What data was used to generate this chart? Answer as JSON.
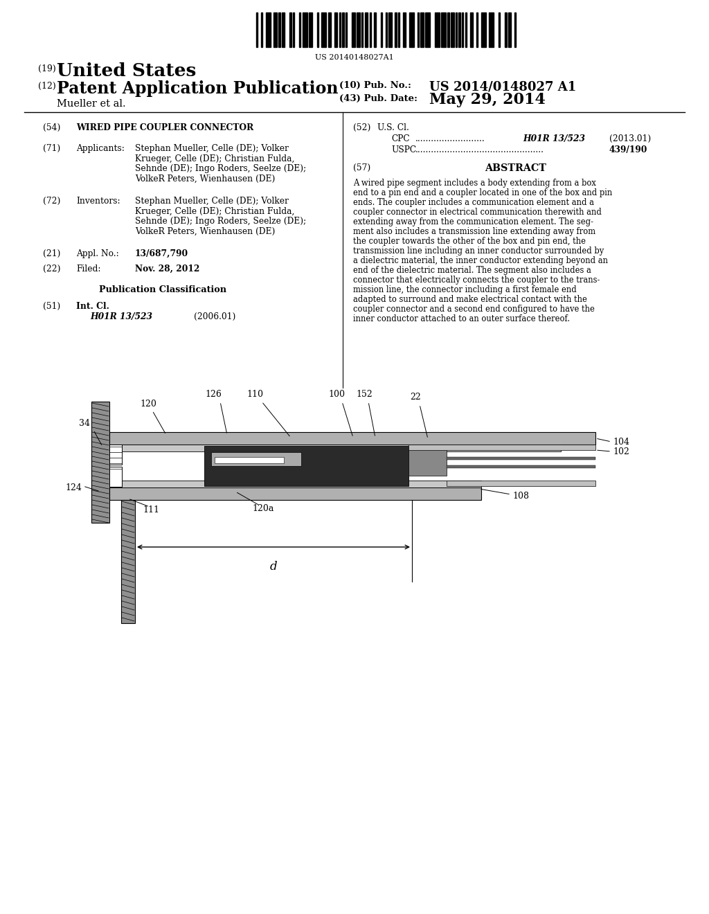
{
  "background_color": "#ffffff",
  "barcode_text": "US 20140148027A1",
  "header": {
    "country": "United States",
    "type": "Patent Application Publication",
    "inventors_label": "Mueller et al.",
    "pub_no_label": "(10) Pub. No.:",
    "pub_no": "US 2014/0148027 A1",
    "pub_date_label": "(43) Pub. Date:",
    "pub_date": "May 29, 2014",
    "tag_19": "(19)",
    "tag_12": "(12)"
  },
  "left_col": {
    "tag_54": "(54)",
    "title": "WIRED PIPE COUPLER CONNECTOR",
    "tag_71": "(71)",
    "applicants_label": "Applicants:",
    "tag_72": "(72)",
    "inventors_label": "Inventors:",
    "tag_21": "(21)",
    "appl_no_label": "Appl. No.:",
    "appl_no": "13/687,790",
    "tag_22": "(22)",
    "filed_label": "Filed:",
    "filed": "Nov. 28, 2012",
    "pub_class_label": "Publication Classification",
    "tag_51": "(51)",
    "int_cl_label": "Int. Cl.",
    "int_cl": "H01R 13/523",
    "int_cl_year": "(2006.01)"
  },
  "right_col": {
    "tag_52": "(52)",
    "us_cl_label": "U.S. Cl.",
    "cpc_label": "CPC",
    "cpc_val": "H01R 13/523",
    "cpc_year": "(2013.01)",
    "uspc_label": "USPC",
    "uspc_val": "439/190",
    "tag_57": "(57)",
    "abstract_title": "ABSTRACT"
  },
  "abstract_lines": [
    "A wired pipe segment includes a body extending from a box",
    "end to a pin end and a coupler located in one of the box and pin",
    "ends. The coupler includes a communication element and a",
    "coupler connector in electrical communication therewith and",
    "extending away from the communication element. The seg-",
    "ment also includes a transmission line extending away from",
    "the coupler towards the other of the box and pin end, the",
    "transmission line including an inner conductor surrounded by",
    "a dielectric material, the inner conductor extending beyond an",
    "end of the dielectric material. The segment also includes a",
    "connector that electrically connects the coupler to the trans-",
    "mission line, the connector including a first female end",
    "adapted to surround and make electrical contact with the",
    "coupler connector and a second end configured to have the",
    "inner conductor attached to an outer surface thereof."
  ],
  "applicant_lines": [
    "Stephan Mueller, Celle (DE); Volker",
    "Krueger, Celle (DE); Christian Fulda,",
    "Sehnde (DE); Ingo Roders, Seelze (DE);",
    "VolkeR Peters, Wienhausen (DE)"
  ],
  "inventor_lines": [
    "Stephan Mueller, Celle (DE); Volker",
    "Krueger, Celle (DE); Christian Fulda,",
    "Sehnde (DE); Ingo Roders, Seelze (DE);",
    "VolkeR Peters, Wienhausen (DE)"
  ]
}
